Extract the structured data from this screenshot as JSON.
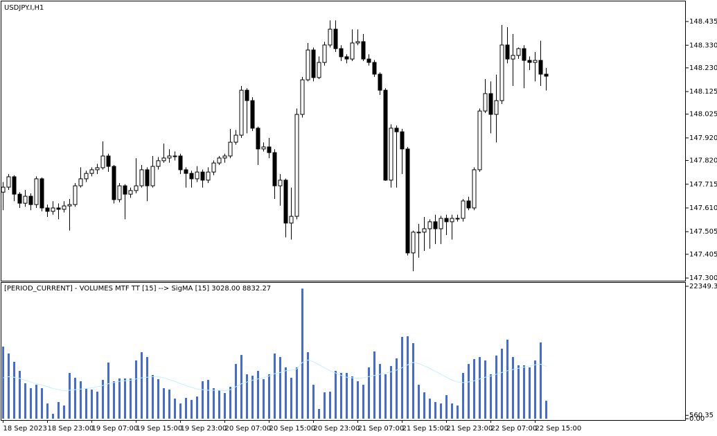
{
  "chart_data": [
    {
      "type": "candlestick",
      "title": "USDJPY.I,H1",
      "ylim": [
        147.288,
        148.524
      ],
      "yticks": [
        {
          "value": 147.3,
          "label": "147.300"
        },
        {
          "value": 147.405,
          "label": "147.405"
        },
        {
          "value": 147.505,
          "label": "147.505"
        },
        {
          "value": 147.61,
          "label": "147.610"
        },
        {
          "value": 147.715,
          "label": "147.715"
        },
        {
          "value": 147.82,
          "label": "147.820"
        },
        {
          "value": 147.92,
          "label": "147.920"
        },
        {
          "value": 148.025,
          "label": "148.025"
        },
        {
          "value": 148.125,
          "label": "148.125"
        },
        {
          "value": 148.23,
          "label": "148.230"
        },
        {
          "value": 148.33,
          "label": "148.330"
        },
        {
          "value": 148.435,
          "label": "148.435"
        }
      ],
      "up_color": "#ffffff",
      "down_color": "#000000",
      "wick_color": "#000000",
      "open": [
        147.68,
        147.702,
        147.748,
        147.671,
        147.631,
        147.662,
        147.625,
        147.739,
        147.61,
        147.595,
        147.61,
        147.604,
        147.619,
        147.625,
        147.708,
        147.739,
        147.763,
        147.779,
        147.788,
        147.84,
        147.794,
        147.647,
        147.708,
        147.671,
        147.687,
        147.708,
        147.779,
        147.708,
        147.794,
        147.819,
        147.831,
        147.84,
        147.84,
        147.779,
        147.763,
        147.739,
        147.769,
        147.733,
        147.769,
        147.809,
        147.831,
        147.84,
        147.901,
        147.932,
        148.131,
        148.085,
        147.963,
        147.871,
        147.88,
        147.855,
        147.708,
        147.733,
        147.543,
        147.573,
        148.024,
        148.177,
        148.309,
        148.187,
        148.254,
        148.331,
        148.401,
        148.315,
        148.279,
        148.269,
        148.34,
        148.346,
        148.269,
        148.254,
        148.202,
        148.131,
        147.733,
        147.963,
        147.947,
        147.871,
        147.411,
        147.503,
        147.503,
        147.518,
        147.549,
        147.518,
        147.564,
        147.549,
        147.564,
        147.564,
        147.641,
        147.61,
        147.779,
        148.039,
        148.116,
        148.024,
        148.085,
        148.331,
        148.269,
        148.285,
        148.315,
        148.263,
        148.254,
        148.263,
        148.202
      ],
      "high": [
        147.725,
        147.76,
        147.755,
        147.68,
        147.69,
        147.675,
        147.75,
        147.745,
        147.625,
        147.64,
        147.63,
        147.64,
        147.65,
        147.72,
        147.79,
        147.775,
        147.79,
        147.805,
        147.905,
        147.85,
        147.8,
        147.72,
        147.715,
        147.7,
        147.83,
        147.8,
        147.79,
        147.84,
        147.835,
        147.895,
        147.87,
        147.86,
        147.85,
        147.79,
        147.775,
        147.795,
        147.78,
        147.79,
        147.82,
        147.84,
        147.85,
        147.96,
        147.955,
        148.15,
        148.14,
        148.1,
        147.97,
        147.9,
        147.92,
        147.87,
        147.76,
        147.74,
        147.7,
        148.05,
        148.19,
        148.34,
        148.32,
        148.28,
        148.345,
        148.44,
        148.44,
        148.33,
        148.29,
        148.4,
        148.4,
        148.38,
        148.29,
        148.265,
        148.21,
        148.14,
        147.98,
        147.975,
        147.96,
        147.88,
        147.51,
        147.54,
        147.57,
        147.56,
        147.58,
        147.575,
        147.58,
        147.58,
        147.58,
        147.65,
        147.66,
        147.79,
        148.05,
        148.18,
        148.17,
        148.2,
        148.42,
        148.41,
        148.38,
        148.32,
        148.33,
        148.28,
        148.3,
        148.35,
        148.23
      ],
      "low": [
        147.6,
        147.69,
        147.64,
        147.61,
        147.615,
        147.6,
        147.61,
        147.595,
        147.57,
        147.58,
        147.56,
        147.59,
        147.51,
        147.615,
        147.7,
        147.725,
        147.75,
        147.76,
        147.78,
        147.77,
        147.63,
        147.635,
        147.56,
        147.655,
        147.675,
        147.7,
        147.64,
        147.7,
        147.78,
        147.81,
        147.81,
        147.82,
        147.76,
        147.7,
        147.7,
        147.725,
        147.7,
        147.72,
        147.755,
        147.8,
        147.81,
        147.83,
        147.89,
        147.92,
        147.94,
        147.95,
        147.8,
        147.86,
        147.83,
        147.65,
        147.62,
        147.48,
        147.47,
        147.56,
        148.01,
        148.17,
        148.17,
        148.18,
        148.24,
        148.32,
        148.3,
        148.26,
        148.25,
        148.26,
        148.33,
        148.26,
        148.24,
        148.19,
        148.11,
        147.73,
        147.7,
        147.7,
        147.76,
        147.4,
        147.33,
        147.39,
        147.42,
        147.43,
        147.45,
        147.45,
        147.49,
        147.47,
        147.55,
        147.55,
        147.6,
        147.6,
        147.77,
        148.03,
        147.94,
        147.9,
        148.07,
        148.25,
        148.15,
        148.27,
        148.14,
        148.22,
        148.17,
        148.15,
        148.13
      ],
      "close": [
        147.702,
        147.748,
        147.671,
        147.631,
        147.662,
        147.625,
        147.739,
        147.61,
        147.595,
        147.61,
        147.604,
        147.619,
        147.625,
        147.708,
        147.739,
        147.763,
        147.779,
        147.788,
        147.84,
        147.794,
        147.647,
        147.708,
        147.671,
        147.687,
        147.708,
        147.779,
        147.708,
        147.794,
        147.819,
        147.831,
        147.84,
        147.84,
        147.779,
        147.763,
        147.739,
        147.769,
        147.733,
        147.769,
        147.809,
        147.831,
        147.84,
        147.901,
        147.932,
        148.131,
        148.085,
        147.963,
        147.871,
        147.88,
        147.855,
        147.708,
        147.733,
        147.543,
        147.573,
        148.024,
        148.177,
        148.309,
        148.187,
        148.254,
        148.331,
        148.401,
        148.315,
        148.279,
        148.269,
        148.34,
        148.346,
        148.269,
        148.254,
        148.202,
        148.131,
        147.733,
        147.963,
        147.947,
        147.871,
        147.411,
        147.503,
        147.503,
        147.518,
        147.549,
        147.518,
        147.564,
        147.549,
        147.564,
        147.564,
        147.641,
        147.61,
        147.779,
        148.039,
        148.116,
        148.024,
        148.085,
        148.331,
        148.269,
        148.285,
        148.315,
        148.263,
        148.254,
        148.263,
        148.202,
        148.193
      ]
    },
    {
      "type": "bar",
      "title": "[PERIOD_CURRENT] - VOLUMES MTF TT [15] --> SigMA [15] 3028.00 8832.27",
      "ylim": [
        -230,
        22935
      ],
      "yticks": [
        22349.35,
        560.35,
        {
          "value": 0,
          "label": "0.00"
        }
      ],
      "color": "#4169e1",
      "ma_color": "#c4f2f8",
      "categories": [
        "18 Sep 2023",
        null,
        null,
        null,
        null,
        null,
        null,
        null,
        "18 Sep 23:00",
        null,
        null,
        null,
        null,
        null,
        null,
        null,
        "19 Sep 07:00",
        null,
        null,
        null,
        null,
        null,
        null,
        null,
        "19 Sep 15:00",
        null,
        null,
        null,
        null,
        null,
        null,
        null,
        "19 Sep 23:00",
        null,
        null,
        null,
        null,
        null,
        null,
        null,
        "20 Sep 07:00",
        null,
        null,
        null,
        null,
        null,
        null,
        null,
        "20 Sep 15:00",
        null,
        null,
        null,
        null,
        null,
        null,
        null,
        "20 Sep 23:00",
        null,
        null,
        null,
        null,
        null,
        null,
        null,
        "21 Sep 07:00",
        null,
        null,
        null,
        null,
        null,
        null,
        null,
        "21 Sep 15:00",
        null,
        null,
        null,
        null,
        null,
        null,
        null,
        "21 Sep 23:00",
        null,
        null,
        null,
        null,
        null,
        null,
        null,
        "22 Sep 07:00",
        null,
        null,
        null,
        null,
        null,
        null,
        null,
        "22 Sep 15:00",
        null,
        null
      ],
      "values": [
        12170,
        11000,
        9600,
        8070,
        5970,
        5150,
        5730,
        5150,
        2570,
        820,
        2810,
        2220,
        7720,
        6900,
        6320,
        5150,
        4910,
        4560,
        6550,
        9480,
        6320,
        6790,
        6790,
        6790,
        9830,
        11230,
        10410,
        7370,
        6670,
        5150,
        4910,
        3390,
        2570,
        3510,
        3160,
        3740,
        6320,
        6550,
        5150,
        4800,
        4330,
        5380,
        9240,
        10760,
        7490,
        7250,
        8070,
        6670,
        7490,
        11000,
        10410,
        8660,
        6900,
        8660,
        21960,
        11230,
        5730,
        1640,
        4450,
        4560,
        8070,
        7720,
        7720,
        7140,
        6320,
        5730,
        8660,
        11350,
        9240,
        7490,
        8890,
        10180,
        13810,
        13920,
        12750,
        5730,
        4450,
        3390,
        2810,
        2570,
        3980,
        2570,
        2220,
        7720,
        9240,
        10060,
        10410,
        9830,
        7490,
        10650,
        11820,
        13340,
        10410,
        9010,
        9010,
        8660,
        9830,
        12870,
        3028.0
      ],
      "ma_values": [
        6900,
        7100,
        7000,
        6800,
        6500,
        6200,
        5900,
        5700,
        5400,
        5100,
        4900,
        4700,
        4800,
        4900,
        5000,
        5100,
        5200,
        5400,
        5600,
        5900,
        6100,
        6300,
        6400,
        6500,
        6700,
        6900,
        7000,
        7100,
        7100,
        6900,
        6600,
        6300,
        5900,
        5600,
        5300,
        5000,
        4900,
        4800,
        4800,
        4800,
        4700,
        4900,
        5400,
        5900,
        6200,
        6500,
        6700,
        6900,
        7200,
        7600,
        7800,
        8100,
        8200,
        8400,
        9500,
        9900,
        9600,
        9100,
        8600,
        8100,
        7700,
        7300,
        7000,
        6900,
        6800,
        6900,
        7100,
        7300,
        7500,
        7700,
        7900,
        8200,
        8600,
        9100,
        9500,
        9300,
        8900,
        8500,
        8000,
        7500,
        7000,
        6500,
        6200,
        6100,
        6200,
        6400,
        6700,
        7000,
        7200,
        7500,
        7800,
        8100,
        8300,
        8500,
        8700,
        8900,
        9100,
        9200,
        8832.27
      ]
    }
  ]
}
